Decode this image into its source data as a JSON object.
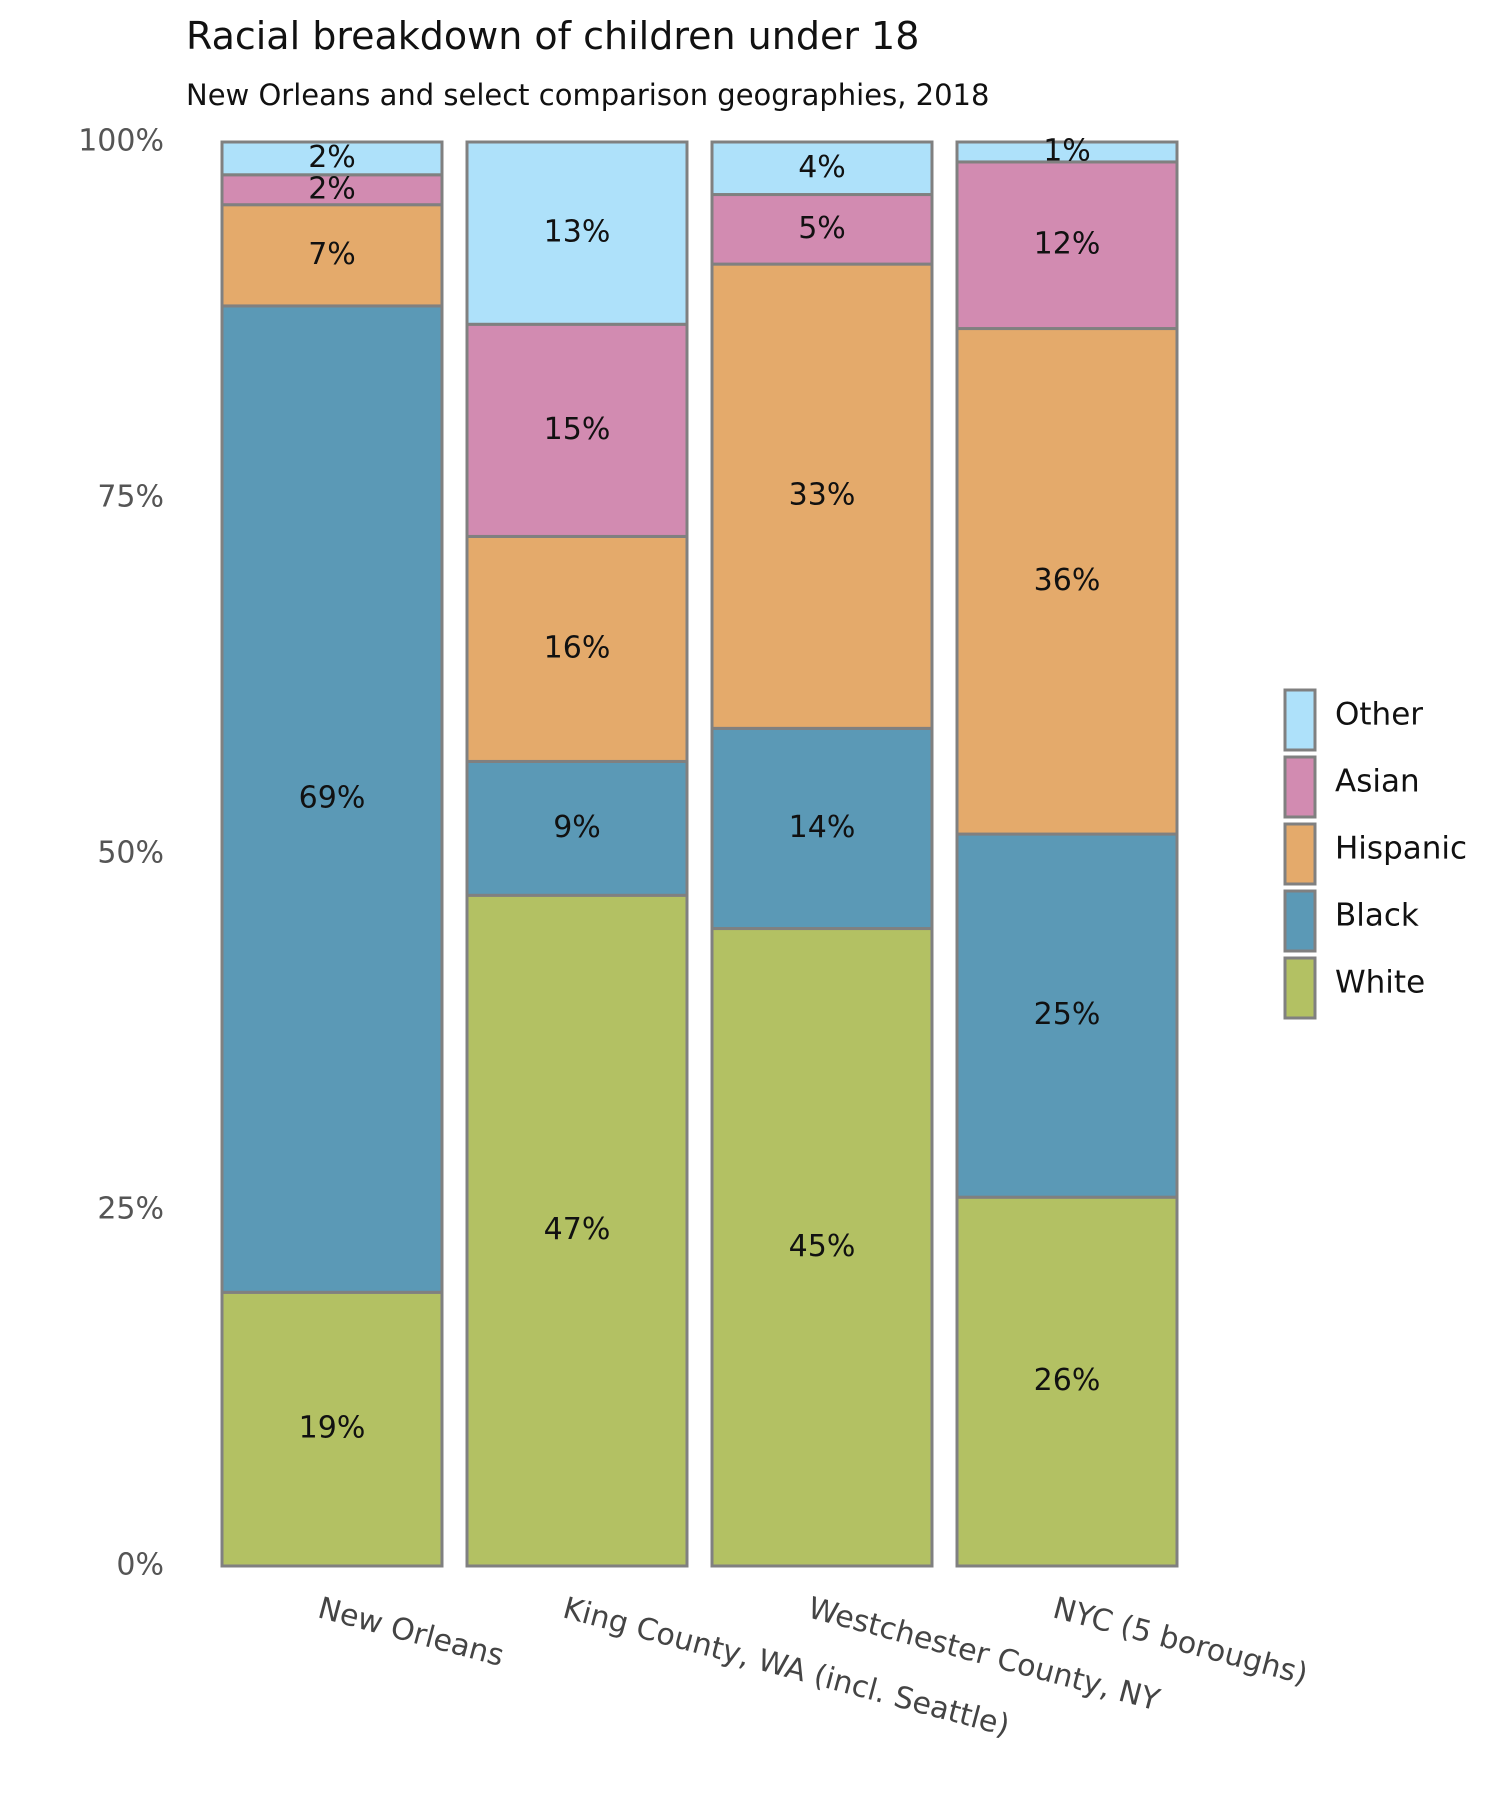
{
  "chart_data": {
    "type": "bar",
    "stacked": true,
    "title": "Racial breakdown of children under 18",
    "subtitle": "New Orleans and select comparison geographies, 2018",
    "xlabel": "",
    "ylabel": "",
    "ylim": [
      0,
      100
    ],
    "y_ticks": [
      "0%",
      "25%",
      "50%",
      "75%",
      "100%"
    ],
    "y_tick_values": [
      0,
      25,
      50,
      75,
      100
    ],
    "categories": [
      "New Orleans",
      "King County, WA (incl. Seattle)",
      "Westchester County, NY",
      "NYC (5 boroughs)"
    ],
    "series": [
      {
        "name": "White",
        "color": "#b3c163",
        "values": [
          19.2,
          47.1,
          44.9,
          25.9
        ],
        "labels": [
          "19%",
          "47%",
          "45%",
          "26%"
        ]
      },
      {
        "name": "Black",
        "color": "#5b99b6",
        "values": [
          69.2,
          9.4,
          14.1,
          25.5
        ],
        "labels": [
          "69%",
          "9%",
          "14%",
          "25%"
        ]
      },
      {
        "name": "Hispanic",
        "color": "#e4aa6b",
        "values": [
          7.1,
          15.8,
          32.7,
          35.5
        ],
        "labels": [
          "7%",
          "16%",
          "33%",
          "36%"
        ]
      },
      {
        "name": "Asian",
        "color": "#d28bb1",
        "values": [
          2.1,
          14.9,
          4.9,
          11.7
        ],
        "labels": [
          "2%",
          "15%",
          "5%",
          "12%"
        ]
      },
      {
        "name": "Other",
        "color": "#aee1fa",
        "values": [
          2.3,
          12.8,
          3.7,
          1.4
        ],
        "labels": [
          "2%",
          "13%",
          "4%",
          "1%"
        ]
      }
    ],
    "legend": {
      "position": "right",
      "order": [
        "Other",
        "Asian",
        "Hispanic",
        "Black",
        "White"
      ]
    },
    "grid": false,
    "bar_border_color": "#808080"
  }
}
